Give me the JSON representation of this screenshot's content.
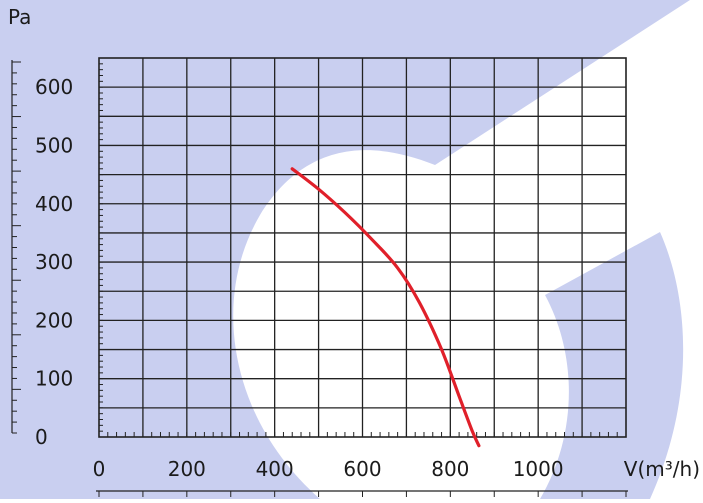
{
  "chart_data": {
    "type": "line",
    "ylabel": "Pa",
    "xlabel": "V(m³/h)",
    "xlim": [
      0,
      1200
    ],
    "ylim": [
      0,
      650
    ],
    "x_ticks": [
      0,
      200,
      400,
      600,
      800,
      1000
    ],
    "x_tick_labels": [
      "0",
      "200",
      "400",
      "600",
      "800",
      "1000"
    ],
    "y_ticks": [
      0,
      100,
      200,
      300,
      400,
      500,
      600
    ],
    "y_tick_labels": [
      "0",
      "100",
      "200",
      "300",
      "400",
      "500",
      "600"
    ],
    "grid": true,
    "series": [
      {
        "color": "#e0202a",
        "x": [
          440,
          500,
          560,
          620,
          680,
          730,
          780,
          820,
          850,
          865
        ],
        "y": [
          460,
          425,
          385,
          340,
          290,
          230,
          150,
          70,
          10,
          -15
        ]
      }
    ]
  },
  "colors": {
    "watermark": "#c9cff0",
    "grid": "#222222",
    "curve": "#e0202a"
  }
}
